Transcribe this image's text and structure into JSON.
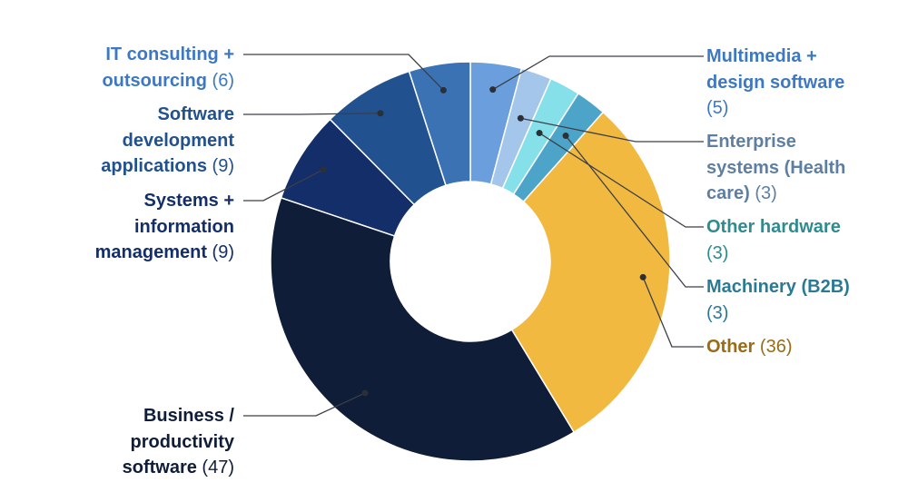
{
  "chart_data": {
    "type": "pie",
    "donut": true,
    "slices": [
      {
        "key": "multimedia",
        "name": "Multimedia + design software",
        "lines": [
          "Multimedia +",
          "design software"
        ],
        "value": 5,
        "color": "#6a9edc",
        "text_color": "#3d78c4",
        "side": "right",
        "count_newline": true
      },
      {
        "key": "enterprise",
        "name": "Enterprise systems (Health care)",
        "lines": [
          "Enterprise",
          "systems (Health",
          "care)"
        ],
        "value": 3,
        "color": "#a4c6ea",
        "text_color": "#5e7fa3",
        "side": "right"
      },
      {
        "key": "other-hardware",
        "name": "Other hardware",
        "lines": [
          "Other hardware"
        ],
        "value": 3,
        "color": "#86e0ea",
        "text_color": "#2f8c8e",
        "side": "right",
        "count_newline": true
      },
      {
        "key": "machinery",
        "name": "Machinery (B2B)",
        "lines": [
          "Machinery (B2B)"
        ],
        "value": 3,
        "color": "#4da4c9",
        "text_color": "#2a7a96",
        "side": "right",
        "count_newline": true
      },
      {
        "key": "other",
        "name": "Other",
        "lines": [
          "Other"
        ],
        "value": 36,
        "color": "#f2b940",
        "text_color": "#9a6c14",
        "side": "right"
      },
      {
        "key": "business",
        "name": "Business / productivity software",
        "lines": [
          "Business /",
          "productivity",
          "software"
        ],
        "value": 47,
        "color": "#0f1d38",
        "text_color": "#0f1d38",
        "side": "left"
      },
      {
        "key": "systems",
        "name": "Systems + information management",
        "lines": [
          "Systems +",
          "information",
          "management"
        ],
        "value": 9,
        "color": "#142e6a",
        "text_color": "#142e6a",
        "side": "left"
      },
      {
        "key": "software-dev",
        "name": "Software development applications",
        "lines": [
          "Software",
          "development",
          "applications"
        ],
        "value": 9,
        "color": "#21518e",
        "text_color": "#21518e",
        "side": "left"
      },
      {
        "key": "it-consulting",
        "name": "IT consulting + outsourcing",
        "lines": [
          "IT consulting +",
          "outsourcing"
        ],
        "value": 6,
        "color": "#3a72b4",
        "text_color": "#3d78c4",
        "side": "left"
      }
    ]
  }
}
